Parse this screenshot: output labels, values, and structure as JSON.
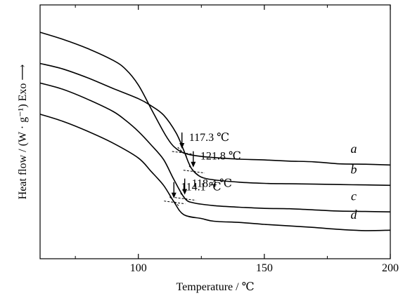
{
  "chart_data": {
    "type": "line",
    "xlabel": "Temperature / ℃",
    "ylabel": "Heat flow / (W · g⁻¹)  Exo ⟶",
    "xlim": [
      61,
      200
    ],
    "x_ticks": [
      100,
      150,
      200
    ],
    "y_tick_labels": "none",
    "grid": false,
    "legend": "none",
    "series": [
      {
        "name": "a",
        "points": [
          [
            61,
            9.3
          ],
          [
            70,
            9.12
          ],
          [
            80,
            8.88
          ],
          [
            90,
            8.58
          ],
          [
            95,
            8.35
          ],
          [
            100,
            7.95
          ],
          [
            105,
            7.35
          ],
          [
            110,
            6.75
          ],
          [
            113,
            6.45
          ],
          [
            115,
            6.32
          ],
          [
            117.3,
            6.23
          ],
          [
            120,
            6.17
          ],
          [
            125,
            6.12
          ],
          [
            130,
            6.09
          ],
          [
            140,
            6.05
          ],
          [
            150,
            6.03
          ],
          [
            160,
            6.0
          ],
          [
            170,
            5.98
          ],
          [
            180,
            5.93
          ],
          [
            190,
            5.92
          ],
          [
            200,
            5.9
          ]
        ]
      },
      {
        "name": "b",
        "points": [
          [
            61,
            8.5
          ],
          [
            70,
            8.36
          ],
          [
            80,
            8.13
          ],
          [
            90,
            7.86
          ],
          [
            100,
            7.6
          ],
          [
            105,
            7.42
          ],
          [
            110,
            7.18
          ],
          [
            115,
            6.72
          ],
          [
            118,
            6.28
          ],
          [
            120,
            5.95
          ],
          [
            121.8,
            5.75
          ],
          [
            125,
            5.59
          ],
          [
            130,
            5.52
          ],
          [
            140,
            5.46
          ],
          [
            150,
            5.43
          ],
          [
            160,
            5.42
          ],
          [
            170,
            5.41
          ],
          [
            180,
            5.4
          ],
          [
            190,
            5.39
          ],
          [
            200,
            5.38
          ]
        ]
      },
      {
        "name": "c",
        "points": [
          [
            61,
            8.0
          ],
          [
            70,
            7.84
          ],
          [
            80,
            7.58
          ],
          [
            90,
            7.27
          ],
          [
            95,
            7.04
          ],
          [
            100,
            6.76
          ],
          [
            105,
            6.42
          ],
          [
            110,
            6.04
          ],
          [
            114,
            5.54
          ],
          [
            118.4,
            5.05
          ],
          [
            122,
            4.93
          ],
          [
            130,
            4.86
          ],
          [
            140,
            4.82
          ],
          [
            150,
            4.79
          ],
          [
            160,
            4.78
          ],
          [
            170,
            4.75
          ],
          [
            180,
            4.72
          ],
          [
            190,
            4.71
          ],
          [
            200,
            4.7
          ]
        ]
      },
      {
        "name": "d",
        "points": [
          [
            61,
            7.2
          ],
          [
            70,
            7.02
          ],
          [
            80,
            6.76
          ],
          [
            90,
            6.46
          ],
          [
            100,
            6.08
          ],
          [
            105,
            5.74
          ],
          [
            110,
            5.38
          ],
          [
            114.1,
            4.96
          ],
          [
            118,
            4.63
          ],
          [
            125,
            4.53
          ],
          [
            130,
            4.46
          ],
          [
            140,
            4.43
          ],
          [
            150,
            4.38
          ],
          [
            160,
            4.34
          ],
          [
            170,
            4.3
          ],
          [
            180,
            4.25
          ],
          [
            190,
            4.22
          ],
          [
            200,
            4.23
          ]
        ]
      }
    ],
    "annotations": [
      {
        "series": "a",
        "x": 117.3,
        "label": "117.3 ℃"
      },
      {
        "series": "b",
        "x": 121.8,
        "label": "121.8 ℃"
      },
      {
        "series": "c",
        "x": 118.4,
        "label": "118.4 ℃"
      },
      {
        "series": "d",
        "x": 114.1,
        "label": "114.1 ℃"
      }
    ],
    "curve_labels": [
      {
        "series": "a",
        "text": "a"
      },
      {
        "series": "b",
        "text": "b"
      },
      {
        "series": "c",
        "text": "c"
      },
      {
        "series": "d",
        "text": "d"
      }
    ]
  }
}
